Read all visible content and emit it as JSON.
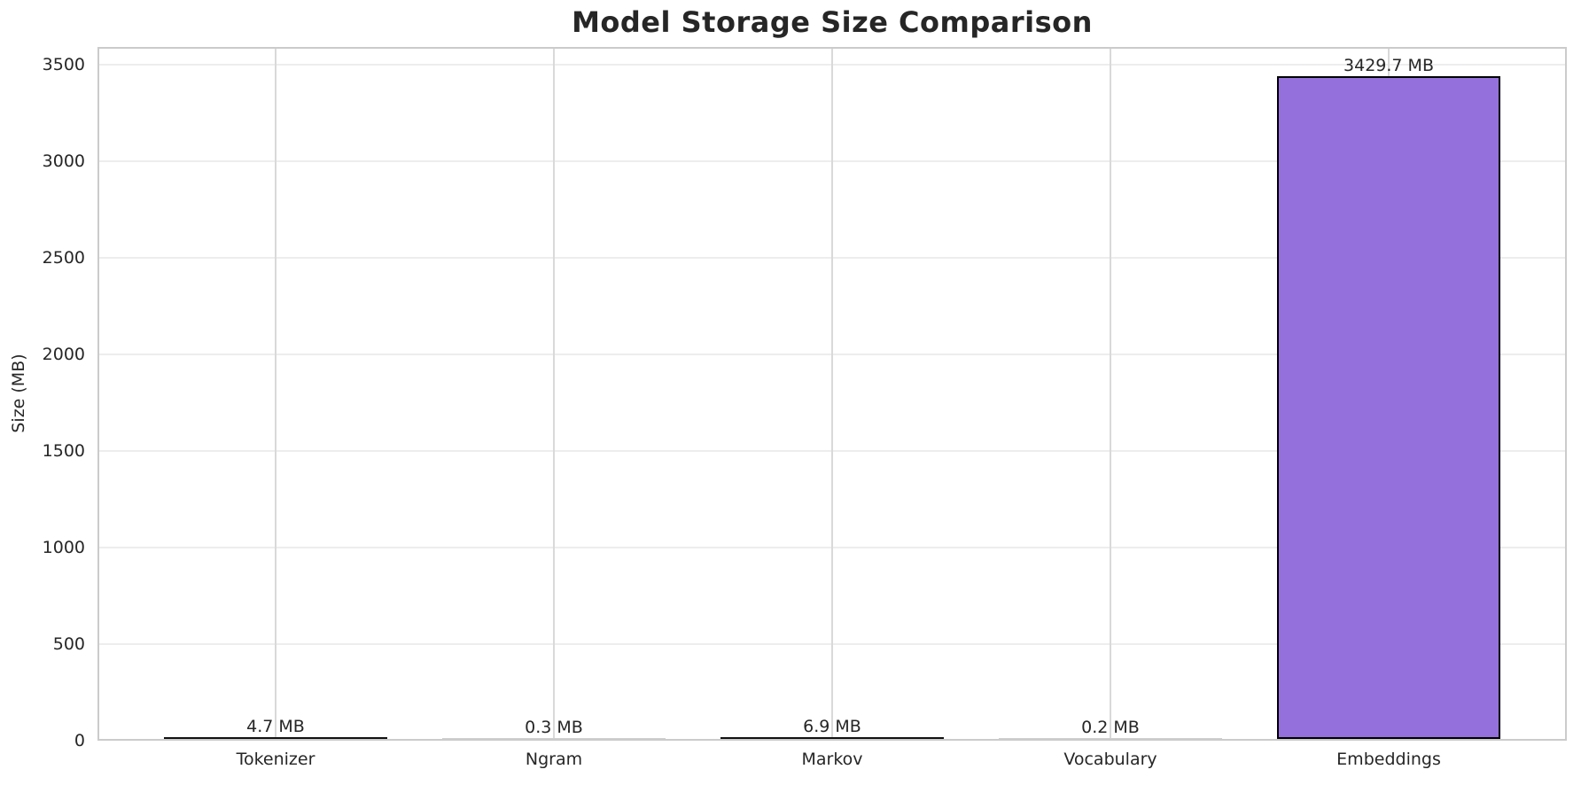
{
  "chart_data": {
    "type": "bar",
    "title": "Model Storage Size Comparison",
    "ylabel": "Size (MB)",
    "xlabel": "",
    "categories": [
      "Tokenizer",
      "Ngram",
      "Markov",
      "Vocabulary",
      "Embeddings"
    ],
    "values": [
      4.7,
      0.3,
      6.9,
      0.2,
      3429.7
    ],
    "value_labels": [
      "4.7 MB",
      "0.3 MB",
      "6.9 MB",
      "0.2 MB",
      "3429.7 MB"
    ],
    "ytick_labels": [
      "0",
      "500",
      "1000",
      "1500",
      "2000",
      "2500",
      "3000",
      "3500"
    ],
    "yticks": [
      0,
      500,
      1000,
      1500,
      2000,
      2500,
      3000,
      3500
    ],
    "ylim": [
      0,
      3592
    ],
    "grid": true,
    "legend": null,
    "colors": {
      "bar_fill": "#9370db",
      "bar_edge": "#000000",
      "tiny_bar_dark": "#111111",
      "tiny_bar_faint": "#cfcfcf",
      "grid_horizontal": "#ededed",
      "grid_vertical": "#d9d9d9",
      "spine": "#cbcbcb",
      "text": "#262626",
      "background": "#ffffff"
    }
  }
}
